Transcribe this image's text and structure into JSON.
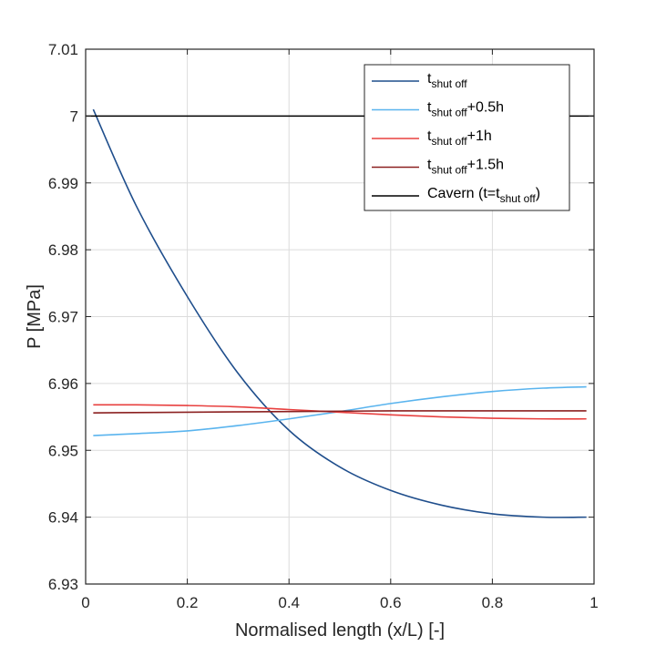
{
  "chart_data": {
    "type": "line",
    "xlabel": "Normalised length (x/L) [-]",
    "ylabel": "P [MPa]",
    "xlim": [
      0,
      1
    ],
    "ylim": [
      6.93,
      7.01
    ],
    "x_ticks": [
      "0",
      "0.2",
      "0.4",
      "0.6",
      "0.8",
      "1"
    ],
    "y_ticks": [
      "6.93",
      "6.94",
      "6.95",
      "6.96",
      "6.97",
      "6.98",
      "6.99",
      "7",
      "7.01"
    ],
    "grid": true,
    "legend_position": "top-right",
    "colors": {
      "axes": "#262626",
      "grid": "#dcdcdc"
    },
    "series": [
      {
        "name": "t_shut off",
        "legend": {
          "base": "t",
          "sub": "shut off",
          "suffix": ""
        },
        "color": "#1f4e8c",
        "x": [
          0.015,
          0.1,
          0.2,
          0.3,
          0.4,
          0.5,
          0.6,
          0.7,
          0.8,
          0.9,
          0.985
        ],
        "y": [
          7.001,
          6.9865,
          6.973,
          6.9615,
          6.953,
          6.9475,
          6.944,
          6.9418,
          6.9405,
          6.94,
          6.94
        ]
      },
      {
        "name": "t_shut off+0.5h",
        "legend": {
          "base": "t",
          "sub": "shut off",
          "suffix": "+0.5h"
        },
        "color": "#5ab4ee",
        "x": [
          0.015,
          0.1,
          0.2,
          0.3,
          0.4,
          0.5,
          0.6,
          0.7,
          0.8,
          0.9,
          0.985
        ],
        "y": [
          6.9522,
          6.9525,
          6.9529,
          6.9537,
          6.9547,
          6.9558,
          6.957,
          6.958,
          6.9588,
          6.9593,
          6.9595
        ]
      },
      {
        "name": "t_shut off+1h",
        "legend": {
          "base": "t",
          "sub": "shut off",
          "suffix": "+1h"
        },
        "color": "#e8403f",
        "x": [
          0.015,
          0.1,
          0.2,
          0.3,
          0.4,
          0.5,
          0.6,
          0.7,
          0.8,
          0.9,
          0.985
        ],
        "y": [
          6.9568,
          6.9568,
          6.9567,
          6.9565,
          6.9561,
          6.9557,
          6.9553,
          6.955,
          6.9548,
          6.9547,
          6.9547
        ]
      },
      {
        "name": "t_shut off+1.5h",
        "legend": {
          "base": "t",
          "sub": "shut off",
          "suffix": "+1.5h"
        },
        "color": "#8b2020",
        "x": [
          0.015,
          0.2,
          0.4,
          0.6,
          0.8,
          0.985
        ],
        "y": [
          6.9556,
          6.9557,
          6.9558,
          6.9559,
          6.9559,
          6.9559
        ]
      },
      {
        "name": "Cavern (t=t_shut off)",
        "legend": {
          "base": "Cavern (t=t",
          "sub": "shut off",
          "suffix": ")"
        },
        "color": "#000000",
        "x": [
          0,
          1
        ],
        "y": [
          7.0,
          7.0
        ]
      }
    ]
  }
}
